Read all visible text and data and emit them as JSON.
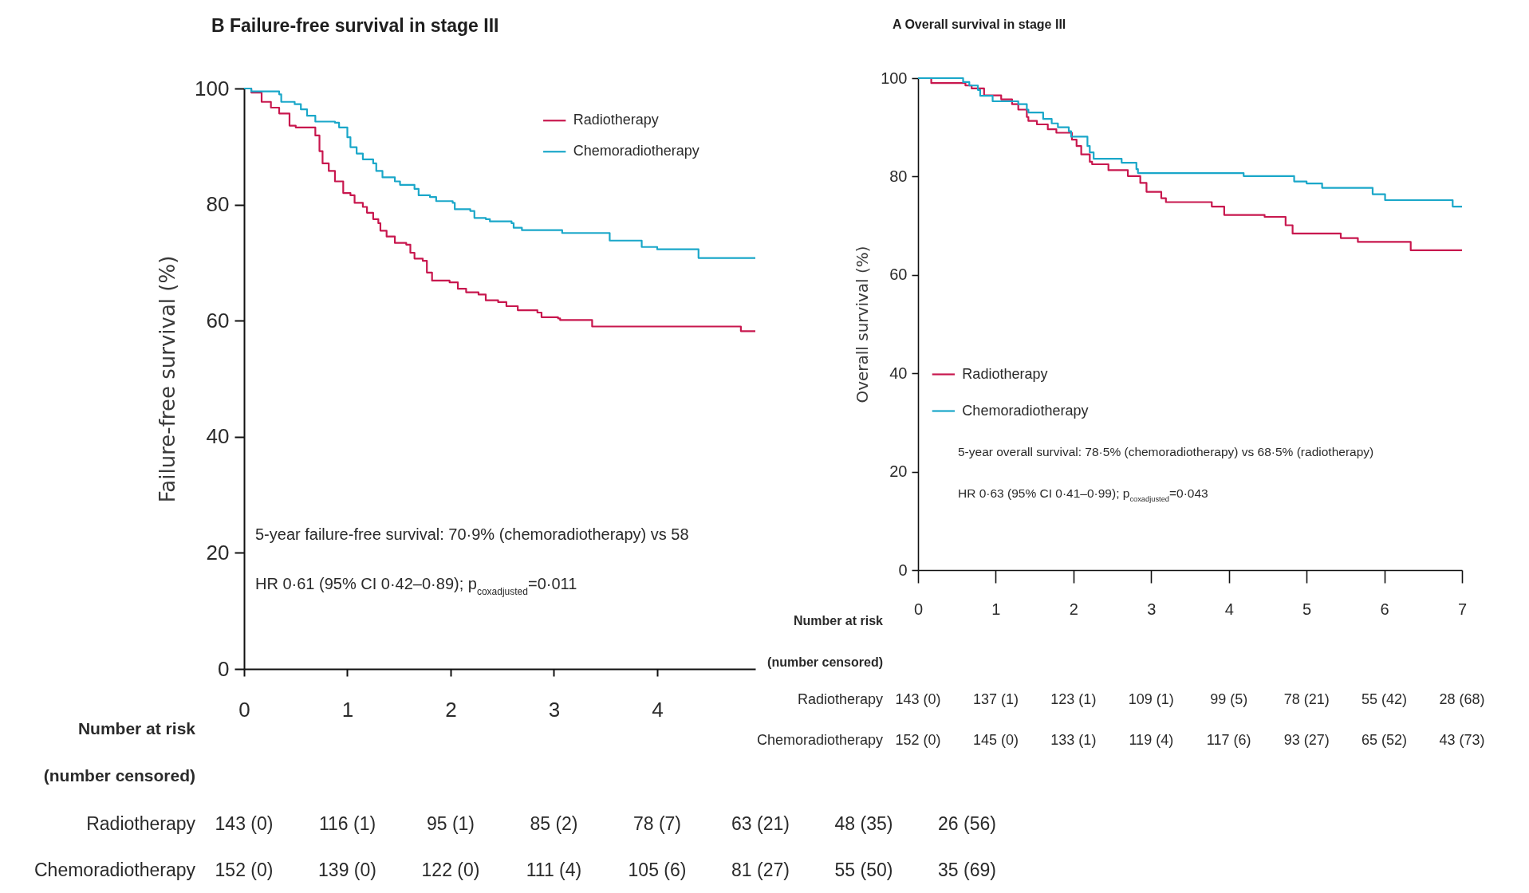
{
  "chart_data": [
    {
      "type": "step",
      "title": "B Failure-free survival in stage III",
      "ylabel": "Failure-free survival (%)",
      "xlim": [
        0,
        4.95
      ],
      "xticks": [
        0,
        1,
        2,
        3,
        4
      ],
      "ylim": [
        0,
        100
      ],
      "yticks": [
        0,
        20,
        40,
        60,
        80,
        100
      ],
      "legend": "top right",
      "series": [
        {
          "name": "Radiotherapy",
          "color": "#c8174e",
          "x": [
            0,
            0.07,
            0.17,
            0.26,
            0.34,
            0.44,
            0.5,
            0.69,
            0.73,
            0.76,
            0.82,
            0.88,
            0.96,
            1.03,
            1.07,
            1.15,
            1.19,
            1.25,
            1.3,
            1.32,
            1.38,
            1.46,
            1.57,
            1.61,
            1.65,
            1.73,
            1.77,
            1.82,
            1.99,
            2.07,
            2.15,
            2.27,
            2.34,
            2.46,
            2.54,
            2.65,
            2.84,
            2.88,
            3.04,
            3.06,
            3.37,
            4.81,
            4.95
          ],
          "values": [
            100,
            99.3,
            97.7,
            96.7,
            95.7,
            93.6,
            93.3,
            91.9,
            89.2,
            87.1,
            85.8,
            84,
            82,
            81.6,
            80.3,
            79.6,
            78.6,
            77.5,
            76.8,
            75.5,
            74.5,
            73.4,
            73.1,
            71.7,
            70.7,
            70.3,
            68.3,
            66.9,
            66.6,
            65.5,
            64.9,
            64.5,
            63.5,
            63.2,
            62.5,
            61.8,
            61.4,
            60.6,
            60.4,
            60.1,
            59,
            58.2,
            58.2
          ]
        },
        {
          "name": "Chemoradiotherapy",
          "color": "#1aa7c9",
          "x": [
            0,
            0.07,
            0.34,
            0.36,
            0.49,
            0.55,
            0.61,
            0.69,
            0.88,
            0.92,
            1,
            1.03,
            1.09,
            1.15,
            1.25,
            1.28,
            1.34,
            1.46,
            1.51,
            1.65,
            1.69,
            1.8,
            1.86,
            2.02,
            2.04,
            2.19,
            2.23,
            2.34,
            2.38,
            2.59,
            2.61,
            2.69,
            3.08,
            3.54,
            3.85,
            4,
            4.4,
            4.95
          ],
          "values": [
            100,
            99.5,
            99,
            97.7,
            97.3,
            96.4,
            95.3,
            94.3,
            94.1,
            93.3,
            91.6,
            89.9,
            88.8,
            87.8,
            87.1,
            85.8,
            84.7,
            84,
            83.4,
            82.7,
            81.6,
            81.3,
            80.6,
            80.3,
            79.2,
            78.9,
            77.7,
            77.5,
            77.1,
            76.8,
            76,
            75.6,
            75.1,
            73.8,
            72.7,
            72.3,
            70.8,
            70.8
          ]
        }
      ],
      "annotations": [
        "5-year failure-free survival: 70·9% (chemoradiotherapy) vs 58",
        "HR 0·61 (95% CI 0·42–0·89); p$_{coxadjusted}$=0·011",
        "Number at risk",
        "(number censored)",
        "Radiotherapy",
        "143 (0)",
        "116 (1)",
        "95 (1)",
        "85 (2)",
        "78 (7)",
        "63 (21)",
        "48 (35)",
        "26 (56)",
        "Chemoradiotherapy",
        "152 (0)",
        "139 (0)",
        "122 (0)",
        "111 (4)",
        "105 (6)",
        "81 (27)",
        "55 (50)",
        "35 (69)"
      ]
    },
    {
      "type": "step",
      "title": "A Overall survival in stage III",
      "ylabel": "Overall survival (%)",
      "xlim": [
        0,
        7
      ],
      "xticks": [
        0,
        1,
        2,
        3,
        4,
        5,
        6,
        7
      ],
      "ylim": [
        0,
        100
      ],
      "yticks": [
        0,
        20,
        40,
        60,
        80,
        100
      ],
      "legend": "bottom left",
      "series": [
        {
          "name": "Radiotherapy",
          "color": "#c8174e",
          "x": [
            0,
            0.17,
            0.61,
            0.69,
            0.85,
            1.07,
            1.21,
            1.29,
            1.4,
            1.42,
            1.53,
            1.67,
            1.78,
            1.98,
            2.04,
            2.1,
            2.21,
            2.24,
            2.45,
            2.7,
            2.86,
            2.94,
            3.13,
            3.19,
            3.78,
            3.94,
            4.46,
            4.73,
            4.82,
            5.44,
            5.66,
            6.34,
            7
          ],
          "values": [
            100,
            99,
            98.5,
            97.9,
            96.5,
            95.7,
            94.7,
            93.6,
            92.1,
            91.3,
            90.6,
            89.6,
            88.9,
            87.5,
            86.2,
            84.5,
            83,
            82.5,
            81.3,
            80.1,
            78.7,
            76.9,
            75.6,
            74.8,
            73.9,
            72.2,
            71.8,
            70.1,
            68.4,
            67.5,
            66.7,
            65,
            65
          ]
        },
        {
          "name": "Chemoradiotherapy",
          "color": "#1aa7c9",
          "x": [
            0,
            0.58,
            0.66,
            0.77,
            0.8,
            0.96,
            1.29,
            1.4,
            1.42,
            1.61,
            1.72,
            1.8,
            1.94,
            1.97,
            2.18,
            2.21,
            2.26,
            2.62,
            2.81,
            2.83,
            4.19,
            4.84,
            5,
            5.2,
            5.85,
            6.01,
            6.88,
            7
          ],
          "values": [
            100,
            99.2,
            98.5,
            97.6,
            96.4,
            95.3,
            94.7,
            93.6,
            93,
            91.7,
            90.8,
            90,
            89.2,
            88.1,
            86.2,
            84.9,
            83.6,
            82.8,
            81.5,
            80.7,
            80.1,
            79,
            78.6,
            77.7,
            76.4,
            75.2,
            73.9,
            73.9
          ]
        }
      ],
      "annotations": [
        "5-year overall survival: 78·5% (chemoradiotherapy) vs 68·5% (radiotherapy)",
        "HR 0·63 (95% CI 0·41–0·99); p$_{coxadjusted}$=0·043",
        "Number at risk",
        "(number censored)",
        "Radiotherapy",
        "143 (0)",
        "137 (1)",
        "123 (1)",
        "109 (1)",
        "99 (5)",
        "78 (21)",
        "55 (42)",
        "28 (68)",
        "Chemoradiotherapy",
        "152 (0)",
        "145 (0)",
        "133 (1)",
        "119 (4)",
        "117 (6)",
        "93 (27)",
        "65 (52)",
        "43 (73)"
      ]
    }
  ]
}
